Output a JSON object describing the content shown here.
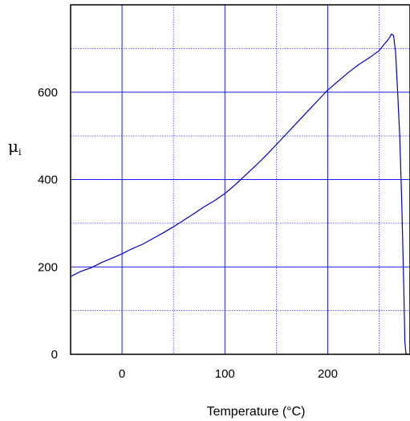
{
  "chart_data": {
    "type": "line",
    "xlabel": "Temperature (°C)",
    "ylabel": "μ",
    "ylabel_subscript": "i",
    "xlim": [
      -50,
      280
    ],
    "ylim": [
      0,
      800
    ],
    "x_ticks": [
      0,
      100,
      200
    ],
    "x_minor_ticks": [
      -50,
      50,
      150,
      250
    ],
    "y_ticks": [
      0,
      200,
      400,
      600
    ],
    "y_minor_ticks": [
      100,
      300,
      500,
      700
    ],
    "grid": true,
    "colors": {
      "line": "#0000cc",
      "major_grid": "#1a1aff",
      "minor_grid": "#3333ff",
      "frame": "#000000"
    },
    "series": [
      {
        "x": [
          -50,
          -40,
          -30,
          -20,
          -10,
          0,
          10,
          20,
          30,
          40,
          50,
          60,
          70,
          80,
          90,
          100,
          110,
          120,
          130,
          140,
          150,
          160,
          170,
          180,
          190,
          200,
          210,
          220,
          230,
          240,
          250,
          255,
          258,
          260,
          262,
          264,
          266,
          268,
          270,
          272,
          274,
          275,
          276,
          278,
          280
        ],
        "y": [
          178,
          190,
          198,
          210,
          220,
          230,
          242,
          252,
          265,
          278,
          292,
          307,
          322,
          338,
          352,
          368,
          388,
          410,
          432,
          455,
          480,
          505,
          530,
          555,
          580,
          605,
          625,
          645,
          663,
          678,
          695,
          710,
          718,
          725,
          733,
          730,
          690,
          600,
          500,
          350,
          150,
          30,
          2,
          0,
          0
        ]
      }
    ]
  }
}
